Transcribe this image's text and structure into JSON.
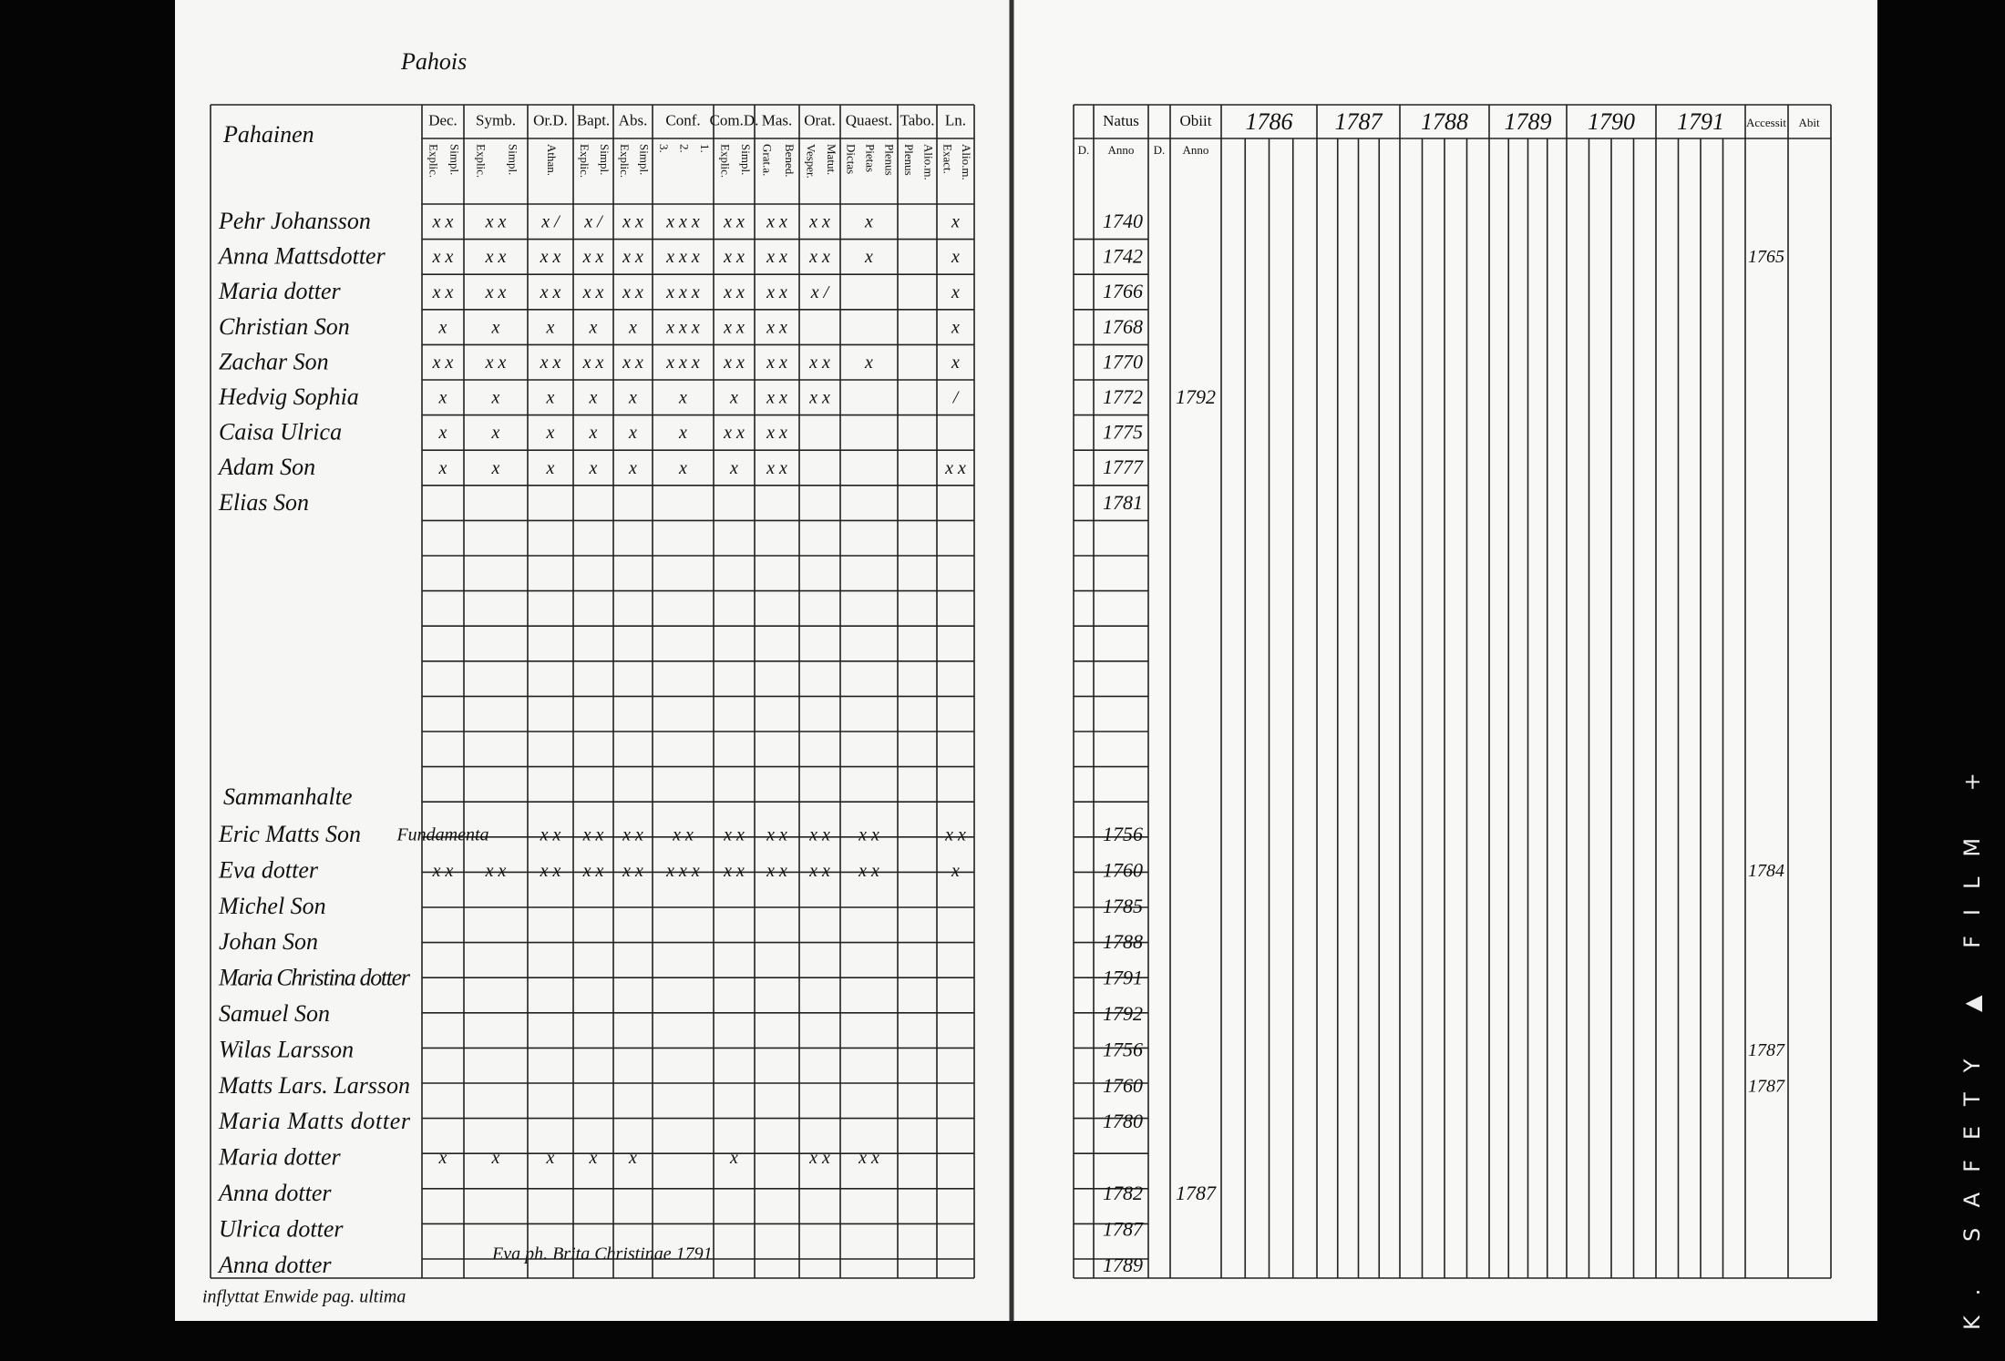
{
  "header": {
    "parish": "Pahois",
    "names_heading": "Pahainen"
  },
  "columns": [
    {
      "head": "Dec.",
      "sub": [
        "Explic.",
        "Simpl."
      ]
    },
    {
      "head": "Symb.",
      "sub": [
        "Explic.",
        "Simpl."
      ]
    },
    {
      "head": "Or.D.",
      "sub": [
        "Athan."
      ]
    },
    {
      "head": "Bapt.",
      "sub": [
        "Explic.",
        "Simpl."
      ]
    },
    {
      "head": "Abs.",
      "sub": [
        "Explic.",
        "Simpl."
      ]
    },
    {
      "head": "Conf.",
      "sub": [
        "3.",
        "2.",
        "1."
      ]
    },
    {
      "head": "Com.D.",
      "sub": [
        "Explic.",
        "Simpl."
      ]
    },
    {
      "head": "Mas.",
      "sub": [
        "Grat.a.",
        "Bened."
      ]
    },
    {
      "head": "Orat.",
      "sub": [
        "Vesper.",
        "Matut."
      ]
    },
    {
      "head": "Quaest.",
      "sub": [
        "Dictas",
        "Pietas",
        "Plenus"
      ]
    },
    {
      "head": "Tabo.",
      "sub": [
        "Plenus",
        "Alio.m."
      ]
    },
    {
      "head": "Ln.",
      "sub": [
        "Exact.",
        "Alio.m."
      ]
    }
  ],
  "right_header": {
    "natus": "Natus",
    "obiit": "Obiit",
    "day": "D.",
    "anno": "Anno",
    "years": [
      "1786",
      "1787",
      "1788",
      "1789",
      "1790",
      "1791"
    ],
    "accessit": "Accessit",
    "abit": "Abit"
  },
  "households": [
    {
      "heading": null,
      "rows": [
        {
          "name": "Pehr Johansson",
          "marks": [
            "x x",
            "x x",
            "x /",
            "x /",
            "x x",
            "x x x",
            "x x",
            "x x",
            "x x",
            "x",
            null,
            "x"
          ],
          "natus": "1740",
          "obiit": null,
          "accessit": null
        },
        {
          "name": "Anna Mattsdotter",
          "marks": [
            "x x",
            "x x",
            "x x",
            "x x",
            "x x",
            "x x x",
            "x x",
            "x x",
            "x x",
            "x",
            null,
            "x"
          ],
          "natus": "1742",
          "obiit": null,
          "accessit": "1765"
        },
        {
          "name": "Maria dotter",
          "marks": [
            "x x",
            "x x",
            "x x",
            "x x",
            "x x",
            "x x x",
            "x x",
            "x x",
            "x /",
            null,
            null,
            "x"
          ],
          "natus": "1766",
          "obiit": null,
          "accessit": null
        },
        {
          "name": "Christian Son",
          "marks": [
            "x",
            "x",
            "x",
            "x",
            "x",
            "x x x",
            "x x",
            "x x",
            null,
            null,
            null,
            "x"
          ],
          "natus": "1768",
          "obiit": null,
          "accessit": null
        },
        {
          "name": "Zachar Son",
          "marks": [
            "x x",
            "x x",
            "x x",
            "x x",
            "x x",
            "x x x",
            "x x",
            "x x",
            "x x",
            "x",
            null,
            "x"
          ],
          "natus": "1770",
          "obiit": null,
          "accessit": null
        },
        {
          "name": "Hedvig Sophia",
          "marks": [
            "x",
            "x",
            "x",
            "x",
            "x",
            "x",
            "x",
            "x x",
            "x x",
            null,
            null,
            "/"
          ],
          "natus": "1772",
          "obiit": "1792",
          "accessit": null
        },
        {
          "name": "Caisa Ulrica",
          "marks": [
            "x",
            "x",
            "x",
            "x",
            "x",
            "x",
            "x x",
            "x x",
            null,
            null,
            null,
            null
          ],
          "natus": "1775",
          "obiit": null,
          "accessit": null
        },
        {
          "name": "Adam Son",
          "marks": [
            "x",
            "x",
            "x",
            "x",
            "x",
            "x",
            "x",
            "x x",
            null,
            null,
            null,
            "x x"
          ],
          "natus": "1777",
          "obiit": null,
          "accessit": null
        },
        {
          "name": "Elias Son",
          "marks": null,
          "natus": "1781",
          "obiit": null,
          "accessit": null
        }
      ]
    },
    {
      "heading": "Sammanhalte",
      "rows": [
        {
          "name": "Eric Matts Son",
          "marks": [
            "Fundamenta",
            null,
            "x x",
            "x x",
            "x x",
            "x x",
            "x x",
            "x x",
            "x x",
            "x x",
            null,
            "x x"
          ],
          "natus": "1756",
          "obiit": null,
          "accessit": null
        },
        {
          "name": "Eva dotter",
          "marks": [
            "x x",
            "x x",
            "x x",
            "x x",
            "x x",
            "x x x",
            "x x",
            "x x",
            "x x",
            "x x",
            null,
            "x"
          ],
          "natus": "1760",
          "obiit": null,
          "accessit": "1784"
        },
        {
          "name": "Michel Son",
          "marks": null,
          "natus": "1785",
          "obiit": null,
          "accessit": null
        },
        {
          "name": "Johan Son",
          "marks": null,
          "natus": "1788",
          "obiit": null,
          "accessit": null
        },
        {
          "name": "Maria Christina dotter",
          "marks": null,
          "natus": "1791",
          "obiit": null,
          "accessit": null
        },
        {
          "name": "Samuel Son",
          "marks": null,
          "natus": "1792",
          "obiit": null,
          "accessit": null
        },
        {
          "name": "Wilas Larsson",
          "marks": null,
          "natus": "1756",
          "obiit": null,
          "accessit": "1787"
        },
        {
          "name": "Matts Lars. Larsson",
          "marks": null,
          "natus": "1760",
          "obiit": null,
          "accessit": "1787"
        },
        {
          "name": "Maria Matts dotter",
          "marks": null,
          "natus": "1780",
          "obiit": null,
          "accessit": null
        },
        {
          "name": "Maria dotter",
          "marks": [
            "x",
            "x",
            "x",
            "x",
            "x",
            null,
            "x",
            null,
            "x x",
            "x x",
            null,
            null
          ],
          "natus": null,
          "obiit": null,
          "accessit": null
        },
        {
          "name": "Anna dotter",
          "marks": null,
          "natus": "1782",
          "obiit": "1787",
          "accessit": null
        },
        {
          "name": "Ulrica dotter",
          "marks": null,
          "natus": "1787",
          "obiit": null,
          "accessit": null
        },
        {
          "name": "Anna dotter",
          "marks": null,
          "natus": "1789",
          "obiit": null,
          "accessit": null
        }
      ]
    }
  ],
  "bottom_row_note": "Eva ph. Brita Christinae 1791",
  "footer_note": "inflyttat Enwide pag. ultima",
  "film_edge": "K. SAFETY ▲ FILM +"
}
